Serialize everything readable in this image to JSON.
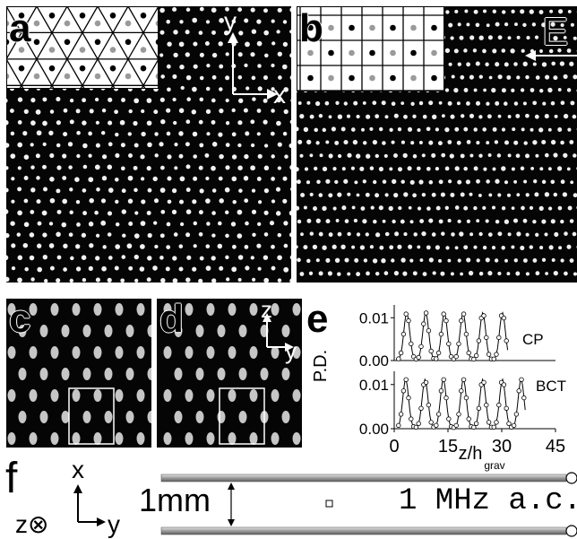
{
  "panels": {
    "a": {
      "label": "a",
      "axis_y": "y",
      "axis_x": "x"
    },
    "b": {
      "label": "b",
      "field_label": "E"
    },
    "c": {
      "label": "c"
    },
    "d": {
      "label": "d",
      "axis_z": "z",
      "axis_y": "y"
    },
    "e": {
      "label": "e"
    },
    "f": {
      "label": "f",
      "axis_x": "x",
      "axis_z": "z⊗",
      "axis_y": "y",
      "gap_label": "1mm",
      "drive_label": "1 MHz a.c."
    }
  },
  "chart_data": [
    {
      "type": "line",
      "name": "CP",
      "ylabel": "P.D.",
      "yticks": [
        "0.00",
        "0.01"
      ],
      "xticks": [
        "0",
        "15",
        "30",
        "45"
      ],
      "ylim": [
        0,
        0.013
      ],
      "xlim": [
        0,
        45
      ],
      "peaks_x": [
        3.5,
        8.8,
        14.0,
        19.2,
        24.7,
        30.2
      ],
      "peak_height": 0.011
    },
    {
      "type": "line",
      "name": "BCT",
      "ylabel": "P.D.",
      "xlabel": "z/h",
      "xlabel_sub": "grav",
      "yticks": [
        "0.00",
        "0.01"
      ],
      "xticks": [
        "0",
        "15",
        "30",
        "45"
      ],
      "ylim": [
        0,
        0.013
      ],
      "xlim": [
        0,
        45
      ],
      "peaks_x": [
        3.2,
        8.6,
        13.7,
        19.3,
        24.7,
        30.2,
        35.4
      ],
      "peak_height": 0.011
    }
  ]
}
